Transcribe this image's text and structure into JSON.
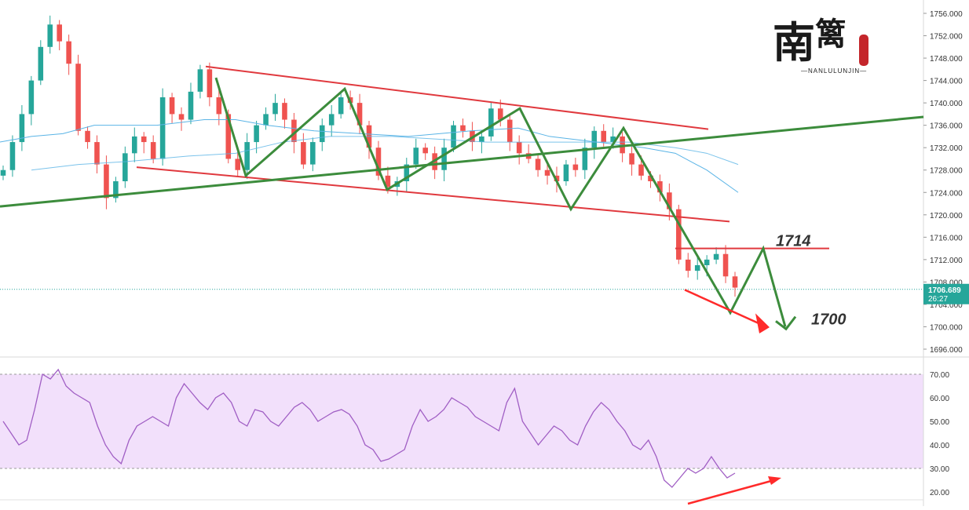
{
  "chart_data": [
    {
      "type": "candlestick",
      "ylim": [
        1694,
        1758
      ],
      "ytick_labels": [
        "1756.000",
        "1752.000",
        "1748.000",
        "1744.000",
        "1740.000",
        "1736.000",
        "1732.000",
        "1728.000",
        "1724.000",
        "1720.000",
        "1716.000",
        "1712.000",
        "1708.000",
        "1704.000",
        "1700.000",
        "1696.000"
      ],
      "price_readout": "1706.689",
      "countdown_readout": "26:27",
      "current_price": 1706.689,
      "colors": {
        "up": "#26a69a",
        "down": "#ef5350",
        "ma_fast": "#5ab4e6",
        "ma_slow": "#5ab4e6",
        "trend": "#3c8c3c",
        "channel": "#e0393e",
        "arrow": "#ff2a2a"
      },
      "candles_close_path": [
        1728,
        1733,
        1738,
        1744,
        1750,
        1754,
        1751,
        1747,
        1735,
        1733,
        1729,
        1723,
        1726,
        1731,
        1734,
        1733,
        1730,
        1741,
        1738,
        1737,
        1742,
        1746,
        1741,
        1738,
        1730,
        1728,
        1733,
        1736,
        1738,
        1740,
        1737,
        1733,
        1729,
        1733,
        1736,
        1738,
        1741,
        1740,
        1736,
        1732,
        1727,
        1725,
        1726,
        1729,
        1732,
        1731,
        1728,
        1732,
        1736,
        1735,
        1733,
        1734,
        1739,
        1737,
        1733,
        1731,
        1730,
        1728,
        1727,
        1726,
        1729,
        1728,
        1732,
        1735,
        1733,
        1734,
        1731,
        1729,
        1727,
        1726,
        1724,
        1721,
        1712,
        1710,
        1711,
        1712,
        1713,
        1709,
        1707
      ],
      "ma_fast": [
        [
          0,
          1733
        ],
        [
          40,
          1734
        ],
        [
          80,
          1734.5
        ],
        [
          120,
          1736
        ],
        [
          200,
          1736
        ],
        [
          260,
          1737
        ],
        [
          300,
          1737
        ],
        [
          340,
          1736
        ],
        [
          400,
          1735
        ],
        [
          460,
          1734.5
        ],
        [
          520,
          1734
        ],
        [
          600,
          1735
        ],
        [
          660,
          1735.5
        ],
        [
          700,
          1734
        ],
        [
          760,
          1733
        ],
        [
          820,
          1732
        ],
        [
          860,
          1731
        ],
        [
          900,
          1728
        ],
        [
          940,
          1724
        ]
      ],
      "ma_slow": [
        [
          40,
          1728
        ],
        [
          100,
          1729
        ],
        [
          160,
          1729.5
        ],
        [
          240,
          1730.5
        ],
        [
          300,
          1731
        ],
        [
          360,
          1733
        ],
        [
          420,
          1734
        ],
        [
          500,
          1734
        ],
        [
          560,
          1733.5
        ],
        [
          620,
          1733
        ],
        [
          680,
          1733
        ],
        [
          740,
          1733
        ],
        [
          800,
          1733
        ],
        [
          860,
          1732
        ],
        [
          900,
          1731
        ],
        [
          940,
          1729
        ]
      ],
      "annotations": [
        {
          "label": "1714",
          "value": 1714
        },
        {
          "label": "1700",
          "value": 1700
        }
      ]
    },
    {
      "type": "line",
      "panel": "oscillator",
      "ylim": [
        18,
        72
      ],
      "ytick_labels": [
        "70.00",
        "60.00",
        "50.00",
        "40.00",
        "30.00",
        "20.00"
      ],
      "band": [
        30,
        70
      ],
      "values": [
        50,
        45,
        40,
        42,
        55,
        70,
        68,
        72,
        65,
        62,
        60,
        58,
        48,
        40,
        35,
        32,
        42,
        48,
        50,
        52,
        50,
        48,
        60,
        66,
        62,
        58,
        55,
        60,
        62,
        58,
        50,
        48,
        55,
        54,
        50,
        48,
        52,
        56,
        58,
        55,
        50,
        52,
        54,
        55,
        53,
        48,
        40,
        38,
        33,
        34,
        36,
        38,
        48,
        55,
        50,
        52,
        55,
        60,
        58,
        56,
        52,
        50,
        48,
        46,
        58,
        64,
        50,
        45,
        40,
        44,
        48,
        46,
        42,
        40,
        48,
        54,
        58,
        55,
        50,
        46,
        40,
        38,
        42,
        35,
        25,
        22,
        26,
        30,
        28,
        30,
        35,
        30,
        26,
        28
      ]
    }
  ],
  "logo": {
    "char1": "南",
    "char2": "篱",
    "sub": "—NANLULUNJIN—"
  }
}
